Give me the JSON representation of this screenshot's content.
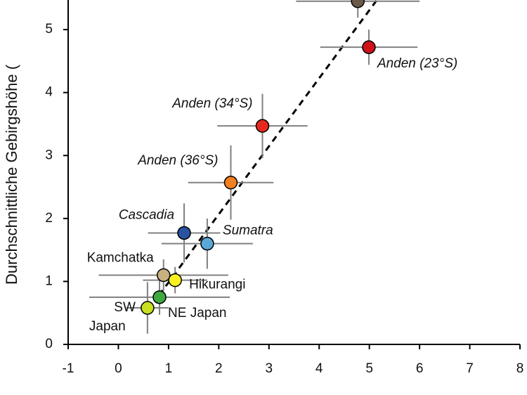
{
  "chart_data": {
    "type": "scatter",
    "y_label": "Durchschnittliche Gebirgshöhe (",
    "xlim": [
      -1,
      8
    ],
    "ylim": [
      0,
      5.47
    ],
    "xticks": [
      -1,
      0,
      1,
      2,
      3,
      4,
      5,
      6,
      7,
      8
    ],
    "yticks": [
      0,
      1,
      2,
      3,
      4,
      5
    ],
    "x": [
      4.77,
      4.99,
      2.87,
      2.24,
      1.31,
      1.77,
      0.9,
      1.13,
      0.82,
      0.58
    ],
    "y": [
      5.45,
      4.72,
      3.47,
      2.57,
      1.77,
      1.6,
      1.1,
      1.02,
      0.75,
      0.58
    ],
    "x_err": [
      1.23,
      0.97,
      0.9,
      0.85,
      0.72,
      0.91,
      1.29,
      0.64,
      1.4,
      0.42
    ],
    "y_err": [
      0.26,
      0.28,
      0.51,
      0.59,
      0.47,
      0.4,
      0.25,
      0.21,
      0.28,
      0.41
    ],
    "colors": [
      "#6b5a4a",
      "#d0121a",
      "#e8281e",
      "#f08020",
      "#2a52a0",
      "#5aa8d8",
      "#c8b080",
      "#f8f020",
      "#40a840",
      "#c8e020"
    ],
    "point_labels": [
      null,
      "Anden (23°S)",
      "Anden (34°S)",
      "Anden (36°S)",
      "Cascadia",
      "Sumatra",
      "Kamchatka",
      "Hikurangi",
      "NE Japan",
      [
        "SW",
        "Japan"
      ]
    ],
    "error_color": "#808080",
    "fit_line": {
      "x": [
        0.81,
        5.15
      ],
      "y": [
        0.78,
        5.47
      ]
    }
  }
}
